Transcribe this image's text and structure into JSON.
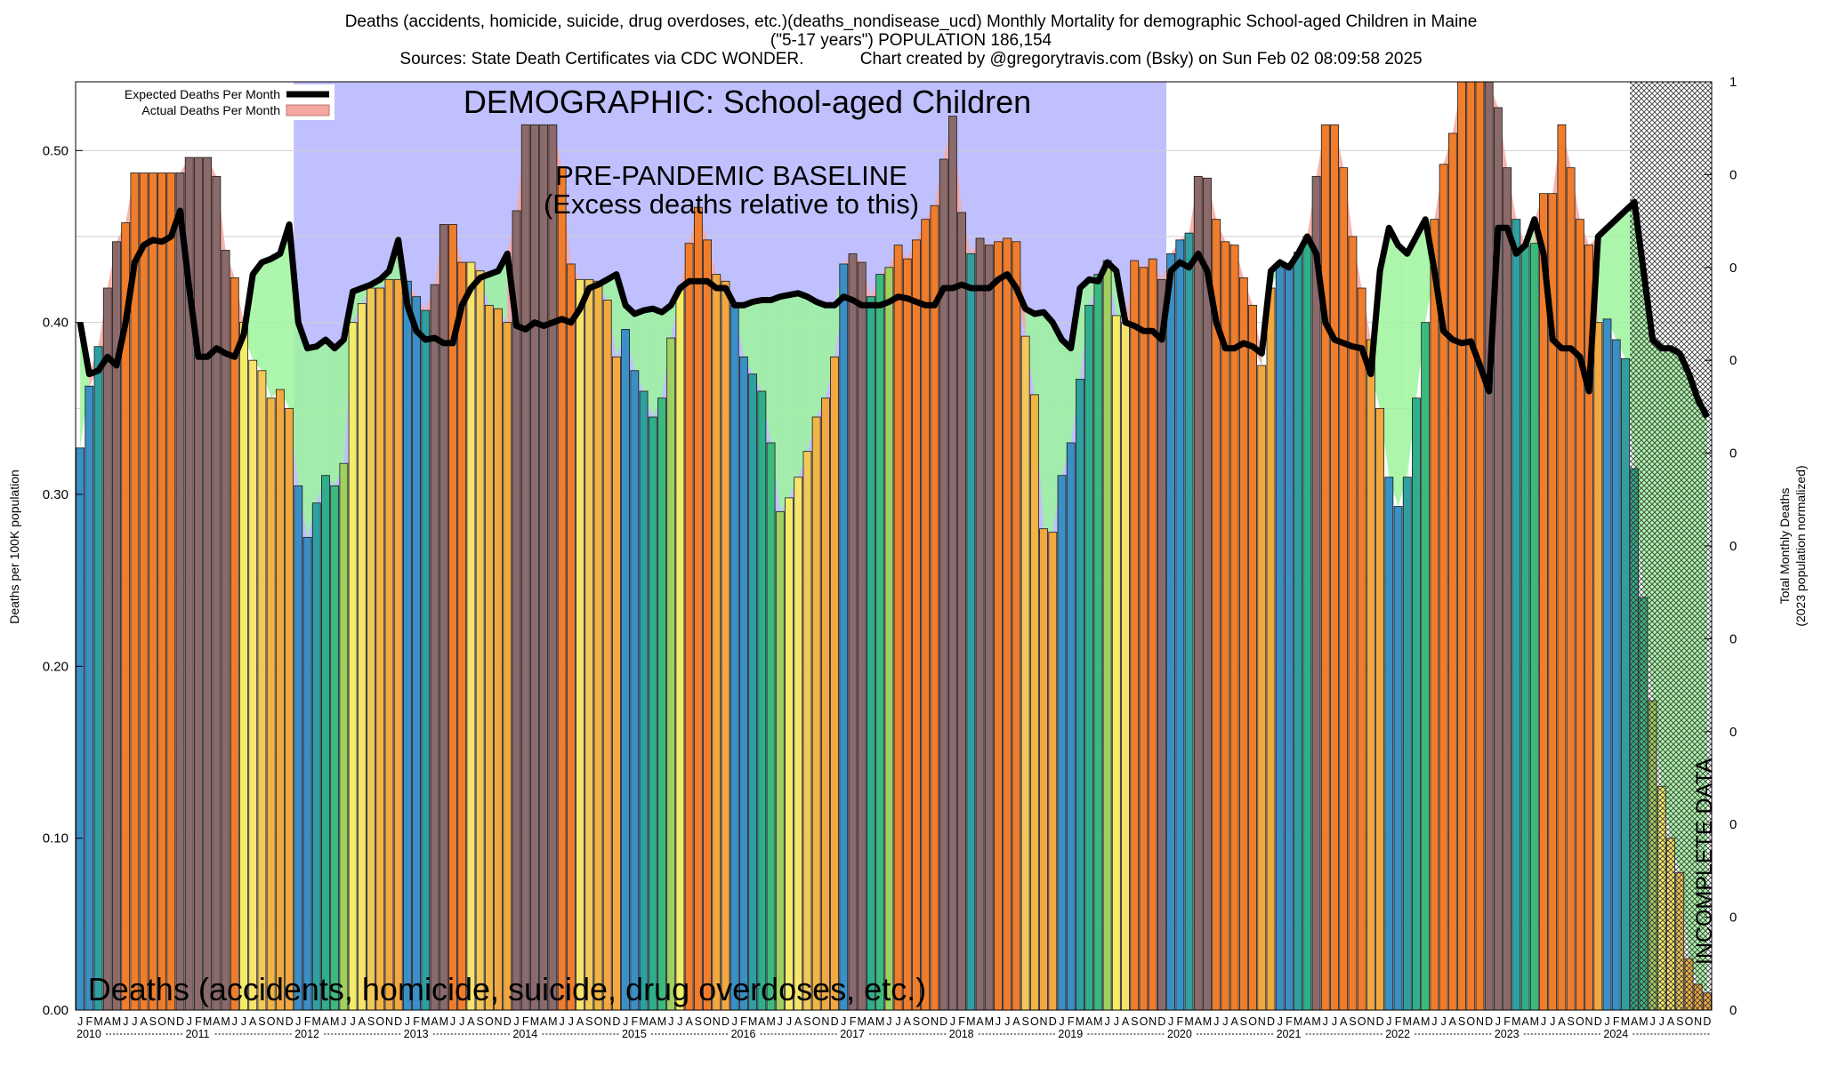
{
  "header": {
    "title_line1": "Deaths (accidents, homicide, suicide, drug overdoses, etc.)(deaths_nondisease_ucd) Monthly Mortality for demographic School-aged Children in Maine",
    "title_line2": "(\"5-17 years\") POPULATION 186,154",
    "title_line3": "Sources: State Death Certificates via CDC WONDER.            Chart created by @gregorytravis.com (Bsky) on Sun Feb 02 08:09:58 2025"
  },
  "chart_data": {
    "type": "bar",
    "ylabel": "Deaths per 100K population",
    "y2label_line1": "Total Monthly Deaths",
    "y2label_line2": "(2023 population normalized)",
    "ylim": [
      0,
      0.54
    ],
    "yticks": [
      "0.00",
      "0.10",
      "0.20",
      "0.30",
      "0.40",
      "0.50"
    ],
    "y2ticks": [
      "0",
      "0",
      "0",
      "0",
      "0",
      "0",
      "0",
      "0",
      "0",
      "0",
      "1"
    ],
    "legend": {
      "placement": "top-left",
      "expected_label": "Expected Deaths Per Month",
      "actual_label": "Actual Deaths Per Month"
    },
    "annotations": {
      "demographic": "DEMOGRAPHIC: School-aged Children",
      "baseline_line1": "PRE-PANDEMIC BASELINE",
      "baseline_line2": "(Excess deaths relative to this)",
      "category": "Deaths (accidents, homicide, suicide, drug overdoses, etc.)",
      "incomplete": "INCOMPLETE DATA"
    },
    "month_letters": [
      "J",
      "F",
      "M",
      "A",
      "M",
      "J",
      "J",
      "A",
      "S",
      "O",
      "N",
      "D"
    ],
    "years": [
      "2010",
      "2011",
      "2012",
      "2013",
      "2014",
      "2015",
      "2016",
      "2017",
      "2018",
      "2019",
      "2020",
      "2021",
      "2022",
      "2023",
      "2024"
    ],
    "season_colors": [
      "#3a8fc4",
      "#3a8fc4",
      "#2f9fa0",
      "#2fae8a",
      "#3cba7e",
      "#a0d060",
      "#f3ec6a",
      "#f7e46c",
      "#f2c85a",
      "#f0b544",
      "#f1a840",
      "#f1a840"
    ],
    "actual": [
      0.327,
      0.363,
      0.386,
      0.42,
      0.447,
      0.458,
      0.487,
      0.487,
      0.487,
      0.487,
      0.487,
      0.487,
      0.496,
      0.496,
      0.496,
      0.485,
      0.442,
      0.426,
      0.4,
      0.378,
      0.372,
      0.356,
      0.361,
      0.35,
      0.305,
      0.275,
      0.295,
      0.311,
      0.305,
      0.318,
      0.4,
      0.411,
      0.42,
      0.42,
      0.425,
      0.425,
      0.424,
      0.415,
      0.407,
      0.422,
      0.457,
      0.457,
      0.435,
      0.435,
      0.43,
      0.41,
      0.408,
      0.4,
      0.465,
      0.515,
      0.515,
      0.515,
      0.515,
      0.49,
      0.434,
      0.425,
      0.425,
      0.424,
      0.413,
      0.38,
      0.396,
      0.372,
      0.36,
      0.345,
      0.356,
      0.391,
      0.419,
      0.446,
      0.467,
      0.448,
      0.428,
      0.424,
      0.41,
      0.38,
      0.37,
      0.36,
      0.33,
      0.29,
      0.298,
      0.31,
      0.325,
      0.345,
      0.356,
      0.38,
      0.434,
      0.44,
      0.435,
      0.415,
      0.428,
      0.432,
      0.445,
      0.437,
      0.448,
      0.46,
      0.468,
      0.495,
      0.52,
      0.464,
      0.44,
      0.449,
      0.445,
      0.447,
      0.449,
      0.447,
      0.392,
      0.358,
      0.28,
      0.278,
      0.311,
      0.33,
      0.367,
      0.41,
      0.428,
      0.436,
      0.404,
      0.4,
      0.436,
      0.432,
      0.437,
      0.425,
      0.44,
      0.448,
      0.452,
      0.485,
      0.484,
      0.46,
      0.447,
      0.445,
      0.426,
      0.41,
      0.375,
      0.42,
      0.432,
      0.434,
      0.441,
      0.45,
      0.485,
      0.515,
      0.515,
      0.49,
      0.45,
      0.42,
      0.39,
      0.35,
      0.31,
      0.293,
      0.31,
      0.356,
      0.4,
      0.46,
      0.492,
      0.51,
      0.54,
      0.54,
      0.54,
      0.54,
      0.525,
      0.49,
      0.46,
      0.445,
      0.446,
      0.475,
      0.475,
      0.515,
      0.49,
      0.46,
      0.445,
      0.4,
      0.402,
      0.39,
      0.379,
      0.315,
      0.24,
      0.18,
      0.13,
      0.1,
      0.08,
      0.03,
      0.015,
      0.01
    ],
    "expected": [
      0.4,
      0.37,
      0.372,
      0.38,
      0.375,
      0.4,
      0.435,
      0.445,
      0.448,
      0.447,
      0.45,
      0.465,
      0.42,
      0.38,
      0.38,
      0.385,
      0.382,
      0.38,
      0.393,
      0.428,
      0.435,
      0.437,
      0.44,
      0.457,
      0.4,
      0.385,
      0.386,
      0.39,
      0.385,
      0.39,
      0.418,
      0.42,
      0.422,
      0.425,
      0.43,
      0.448,
      0.41,
      0.395,
      0.39,
      0.391,
      0.388,
      0.388,
      0.41,
      0.42,
      0.426,
      0.428,
      0.43,
      0.44,
      0.398,
      0.396,
      0.4,
      0.398,
      0.4,
      0.402,
      0.4,
      0.408,
      0.42,
      0.422,
      0.425,
      0.428,
      0.41,
      0.405,
      0.407,
      0.408,
      0.406,
      0.41,
      0.42,
      0.424,
      0.424,
      0.424,
      0.42,
      0.42,
      0.41,
      0.41,
      0.412,
      0.413,
      0.413,
      0.415,
      0.416,
      0.417,
      0.415,
      0.412,
      0.41,
      0.41,
      0.415,
      0.413,
      0.41,
      0.41,
      0.41,
      0.412,
      0.415,
      0.414,
      0.412,
      0.41,
      0.41,
      0.42,
      0.42,
      0.422,
      0.42,
      0.42,
      0.42,
      0.425,
      0.428,
      0.42,
      0.408,
      0.405,
      0.406,
      0.4,
      0.39,
      0.385,
      0.42,
      0.425,
      0.424,
      0.435,
      0.43,
      0.4,
      0.398,
      0.395,
      0.395,
      0.39,
      0.43,
      0.435,
      0.432,
      0.44,
      0.43,
      0.4,
      0.385,
      0.385,
      0.388,
      0.386,
      0.382,
      0.43,
      0.435,
      0.432,
      0.44,
      0.45,
      0.44,
      0.4,
      0.39,
      0.388,
      0.386,
      0.385,
      0.37,
      0.43,
      0.455,
      0.445,
      0.44,
      0.45,
      0.46,
      0.43,
      0.395,
      0.39,
      0.388,
      0.389,
      0.375,
      0.36,
      0.455,
      0.455,
      0.44,
      0.445,
      0.46,
      0.44,
      0.39,
      0.385,
      0.385,
      0.38,
      0.36,
      0.45,
      0.455,
      0.46,
      0.465,
      0.47,
      0.43,
      0.39,
      0.385,
      0.385,
      0.382,
      0.37,
      0.355,
      0.345
    ],
    "baseline_end_index": 120,
    "incomplete_start_index": 171
  }
}
